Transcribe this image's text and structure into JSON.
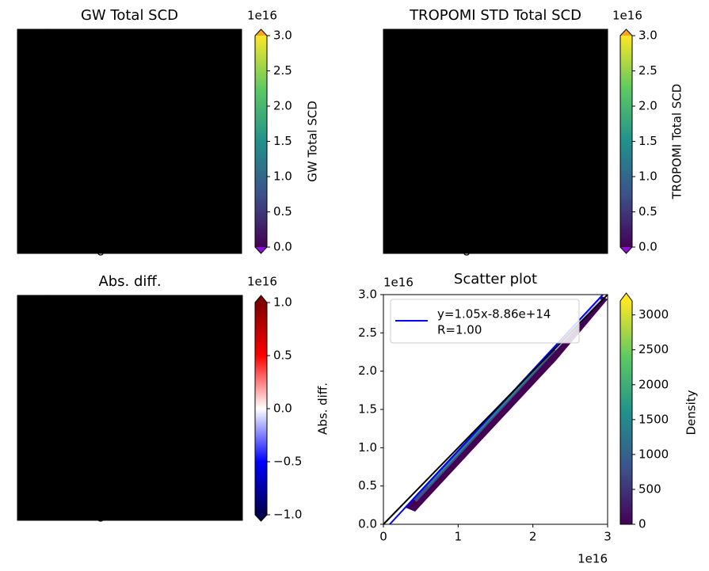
{
  "chart_data": [
    {
      "type": "heatmap",
      "title": "GW Total SCD",
      "colorbar_label": "GW Total SCD",
      "offset_text": "1e16",
      "colormap": "viridis",
      "clim": [
        0,
        3
      ],
      "cticks": [
        {
          "value": 0,
          "label": "0.0"
        },
        0.5,
        {
          "value": 1,
          "label": "1.0"
        },
        1.5,
        {
          "value": 2,
          "label": "2.0"
        },
        2.5,
        {
          "value": 3,
          "label": "3.0"
        }
      ]
    },
    {
      "type": "heatmap",
      "title": "TROPOMI STD Total SCD",
      "colorbar_label": "TROPOMI Total SCD",
      "offset_text": "1e16",
      "colormap": "viridis",
      "clim": [
        0,
        3
      ],
      "cticks": [
        {
          "value": 0,
          "label": "0.0"
        },
        0.5,
        {
          "value": 1,
          "label": "1.0"
        },
        1.5,
        {
          "value": 2,
          "label": "2.0"
        },
        2.5,
        {
          "value": 3,
          "label": "3.0"
        }
      ]
    },
    {
      "type": "heatmap",
      "title": "Abs. diff.",
      "colorbar_label": "Abs. diff.",
      "offset_text": "1e16",
      "colormap": "seismic",
      "clim": [
        -1,
        1
      ],
      "cticks": [
        {
          "value": -1,
          "label": "−1.0"
        },
        {
          "value": -0.5,
          "label": "−0.5"
        },
        {
          "value": 0,
          "label": "0.0"
        },
        0.5,
        {
          "value": 1,
          "label": "1.0"
        }
      ]
    },
    {
      "type": "scatter",
      "title": "Scatter plot",
      "x_offset_text": "1e16",
      "y_offset_text": "1e16",
      "xlim": [
        0,
        3
      ],
      "xticks": [
        0,
        1,
        2,
        3
      ],
      "ylim": [
        0,
        3
      ],
      "yticks": [
        {
          "value": 0,
          "label": "0.0"
        },
        0.5,
        {
          "value": 1,
          "label": "1.0"
        },
        1.5,
        {
          "value": 2,
          "label": "2.0"
        },
        2.5,
        {
          "value": 3,
          "label": "3.0"
        }
      ],
      "legend_label": [
        "y=1.05x-8.86e+14",
        "R=1.00"
      ],
      "colorbar_label": "Density",
      "colormap": "viridis",
      "clim": [
        0,
        3200
      ],
      "cticks": [
        0,
        500,
        1000,
        1500,
        2000,
        2500,
        3000
      ]
    }
  ]
}
